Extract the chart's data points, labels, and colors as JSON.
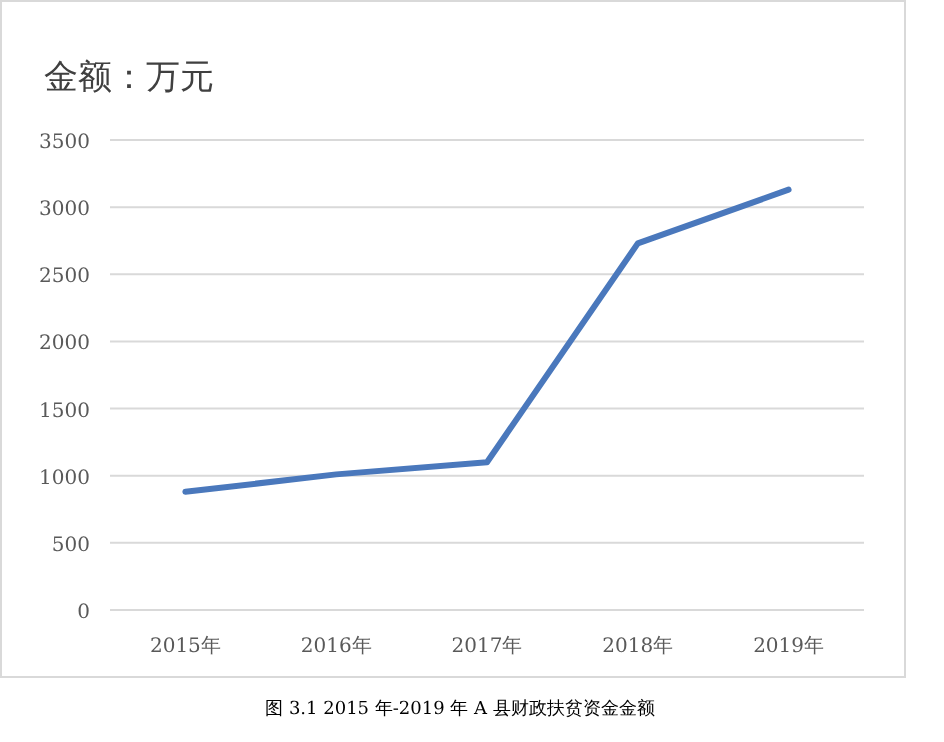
{
  "chart_data": {
    "type": "line",
    "title": "金额：万元",
    "categories": [
      "2015年",
      "2016年",
      "2017年",
      "2018年",
      "2019年"
    ],
    "series": [
      {
        "color": "#4a78bc",
        "values": [
          880,
          1010,
          1100,
          2730,
          3130
        ]
      }
    ],
    "ylim": [
      0,
      3500
    ],
    "yticks": [
      0,
      500,
      1000,
      1500,
      2000,
      2500,
      3000,
      3500
    ],
    "grid": "y",
    "marker": "none",
    "line_style": "solid",
    "annotations": [
      "图 3.1  2015 年-2019 年 A 县财政扶贫资金金额"
    ]
  }
}
